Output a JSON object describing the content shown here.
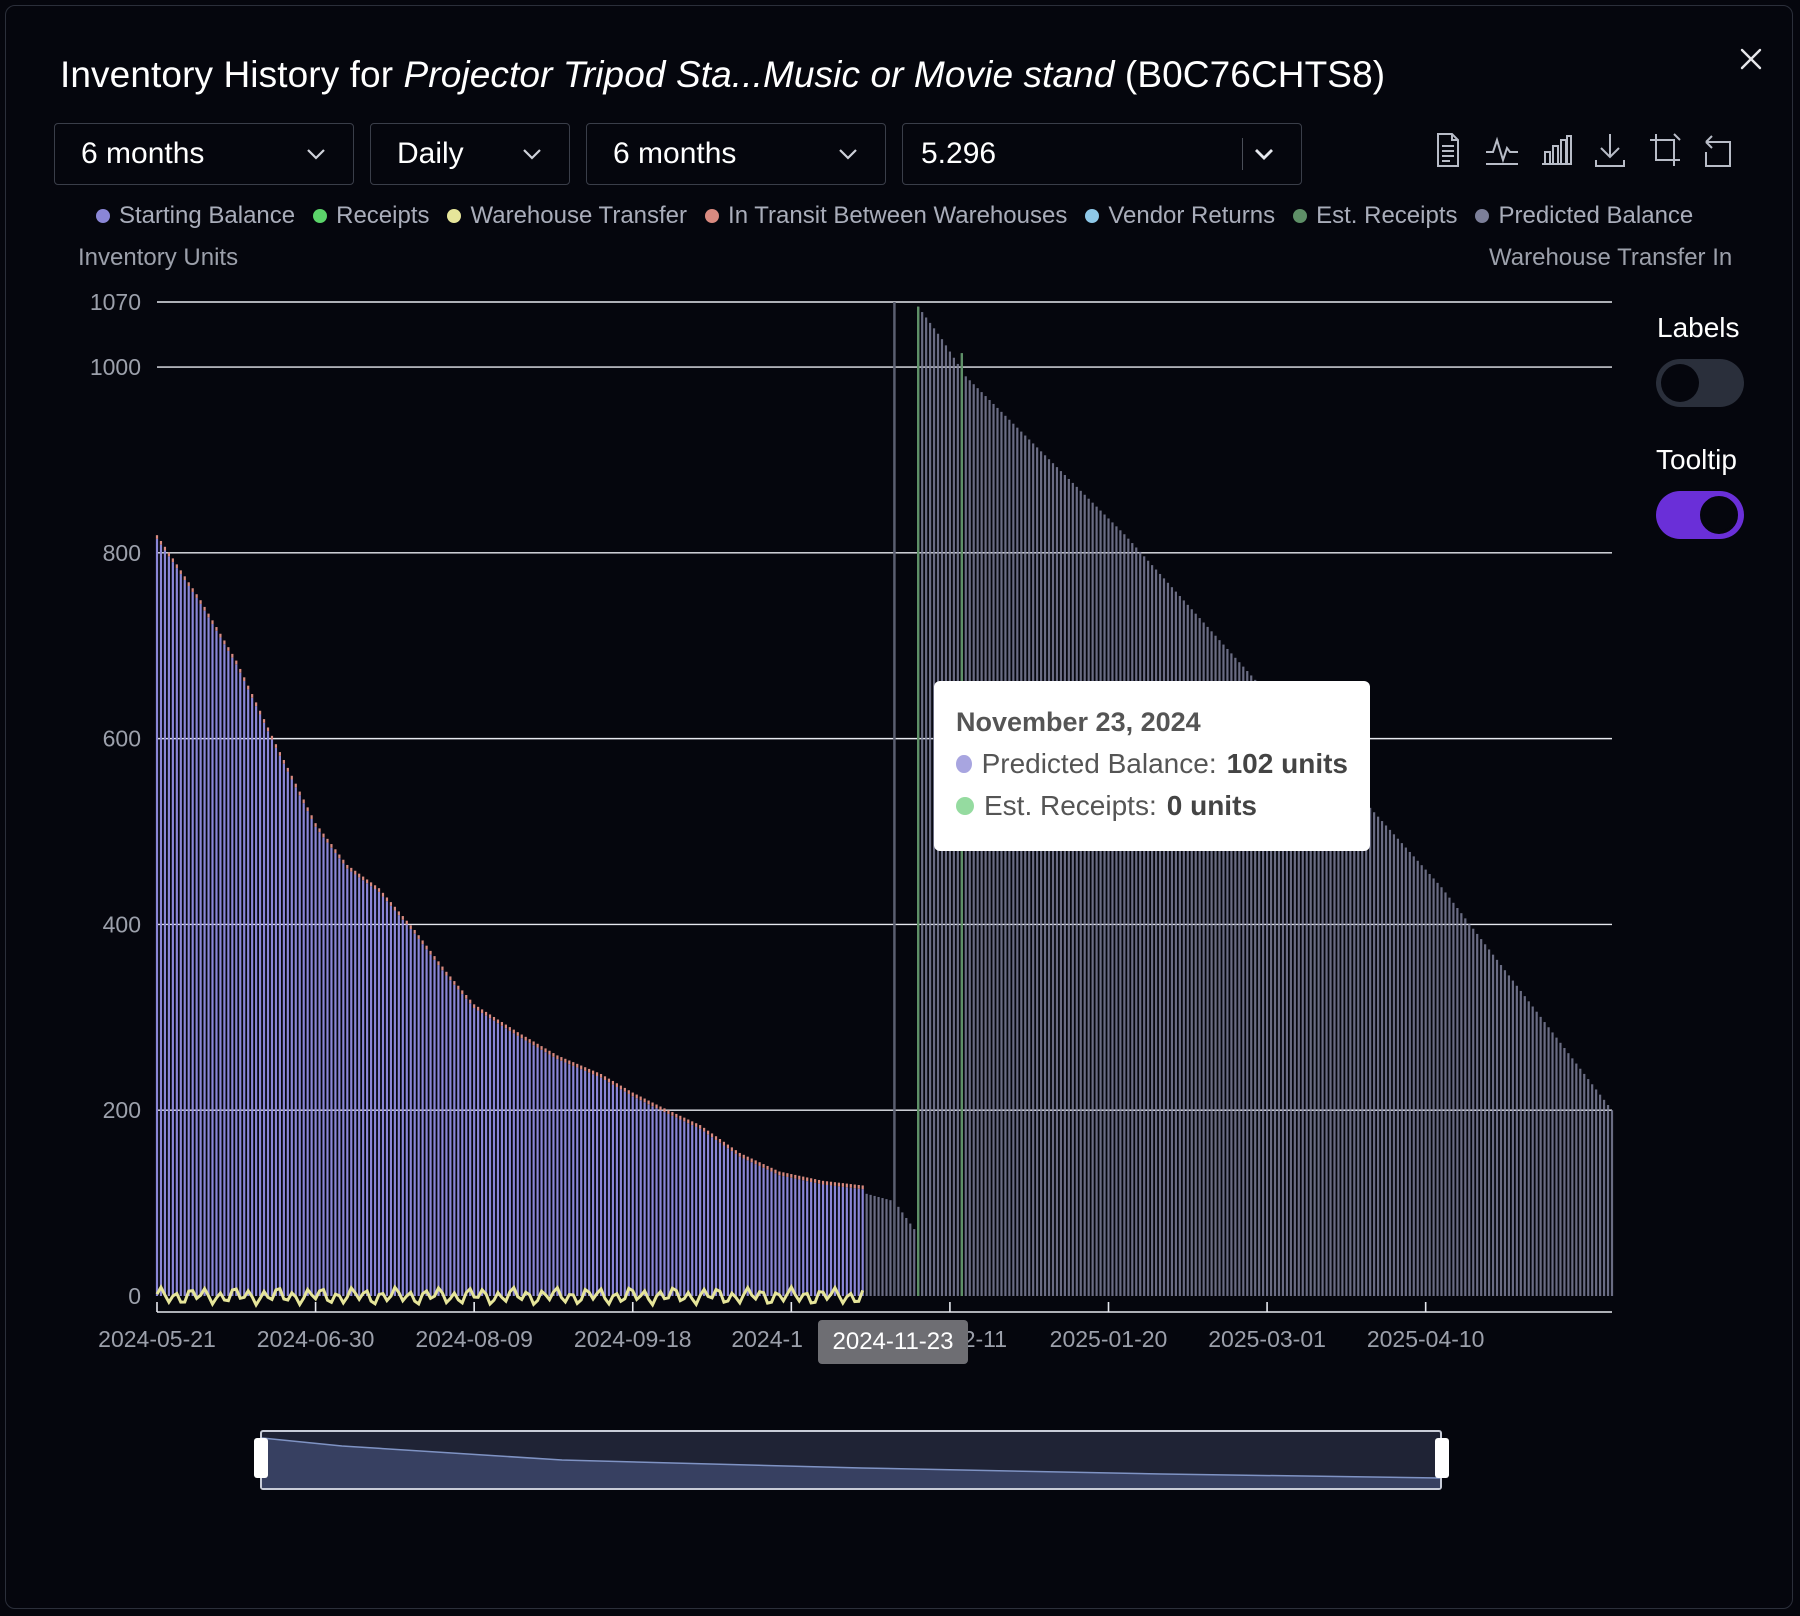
{
  "dialog": {
    "title_prefix": "Inventory History for ",
    "title_product": "Projector Tripod Sta...Music or Movie stand",
    "title_asin": " (B0C76CHTS8)"
  },
  "controls": {
    "range_select": "6 months",
    "interval_select": "Daily",
    "forecast_select": "6 months",
    "value_select": "5.296"
  },
  "toolbar_icons": [
    "data-view-icon",
    "line-chart-icon",
    "bar-chart-icon",
    "download-icon",
    "zoom-icon",
    "restore-icon"
  ],
  "legend": [
    {
      "label": "Starting Balance",
      "color": "#8a86d6"
    },
    {
      "label": "Receipts",
      "color": "#5bd46a"
    },
    {
      "label": "Warehouse Transfer",
      "color": "#e6e59a"
    },
    {
      "label": "In Transit Between Warehouses",
      "color": "#d98a80"
    },
    {
      "label": "Vendor Returns",
      "color": "#8ec8e8"
    },
    {
      "label": "Est. Receipts",
      "color": "#5e8f67"
    },
    {
      "label": "Predicted Balance",
      "color": "#7c7f99"
    }
  ],
  "legend_extra": "Warehouse Transfer In",
  "side_panel": {
    "labels_title": "Labels",
    "labels_on": false,
    "tooltip_title": "Tooltip",
    "tooltip_on": true,
    "accent": "#6a2fd8"
  },
  "tooltip": {
    "date": "November 23, 2024",
    "rows": [
      {
        "label": "Predicted Balance: ",
        "value": "102 units",
        "color": "#a8a5e0"
      },
      {
        "label": "Est. Receipts: ",
        "value": "0 units",
        "color": "#95dba0"
      }
    ]
  },
  "hover_label": "2024-11-23",
  "chart_data": {
    "type": "bar",
    "ylabel": "Inventory Units",
    "ylim": [
      0,
      1070
    ],
    "yticks": [
      0,
      200,
      400,
      600,
      800,
      1000,
      1070
    ],
    "xticks": [
      "2024-05-21",
      "2024-06-30",
      "2024-08-09",
      "2024-09-18",
      "2024-1",
      "12-11",
      "2025-01-20",
      "2025-03-01",
      "2025-04-10"
    ],
    "x_start": "2024-05-21",
    "x_end": "2025-05-23",
    "grid": true,
    "series": [
      {
        "name": "Starting Balance",
        "color": "#8a86d6",
        "start": "2024-05-21",
        "end": "2024-11-15",
        "points": [
          [
            "2024-05-21",
            815
          ],
          [
            "2024-05-25",
            790
          ],
          [
            "2024-06-01",
            745
          ],
          [
            "2024-06-10",
            680
          ],
          [
            "2024-06-20",
            590
          ],
          [
            "2024-06-30",
            505
          ],
          [
            "2024-07-08",
            460
          ],
          [
            "2024-07-16",
            435
          ],
          [
            "2024-07-25",
            390
          ],
          [
            "2024-08-02",
            345
          ],
          [
            "2024-08-09",
            310
          ],
          [
            "2024-08-20",
            280
          ],
          [
            "2024-08-30",
            255
          ],
          [
            "2024-09-10",
            235
          ],
          [
            "2024-09-18",
            215
          ],
          [
            "2024-09-25",
            200
          ],
          [
            "2024-10-05",
            180
          ],
          [
            "2024-10-15",
            150
          ],
          [
            "2024-10-25",
            130
          ],
          [
            "2024-11-05",
            120
          ],
          [
            "2024-11-15",
            115
          ]
        ]
      },
      {
        "name": "In Transit Between Warehouses",
        "color": "#d98a80",
        "start": "2024-05-21",
        "end": "2024-11-15",
        "value": 4
      },
      {
        "name": "Predicted Balance",
        "color": "#7c7f99",
        "start": "2024-11-16",
        "end": "2025-05-23",
        "points": [
          [
            "2024-11-16",
            110
          ],
          [
            "2024-11-23",
            102
          ],
          [
            "2024-11-28",
            72
          ],
          [
            "2024-11-29",
            1065
          ],
          [
            "2024-12-05",
            1030
          ],
          [
            "2024-12-11",
            990
          ],
          [
            "2025-01-20",
            820
          ],
          [
            "2025-03-01",
            630
          ],
          [
            "2025-04-10",
            440
          ],
          [
            "2025-05-23",
            200
          ]
        ]
      },
      {
        "name": "Est. Receipts",
        "color": "#5e8f67",
        "points": [
          [
            "2024-11-29",
            1065
          ],
          [
            "2024-12-10",
            1015
          ]
        ]
      },
      {
        "name": "Warehouse Transfer",
        "color": "#e6e59a",
        "start": "2024-05-21",
        "end": "2024-11-15",
        "value": 0
      }
    ]
  }
}
